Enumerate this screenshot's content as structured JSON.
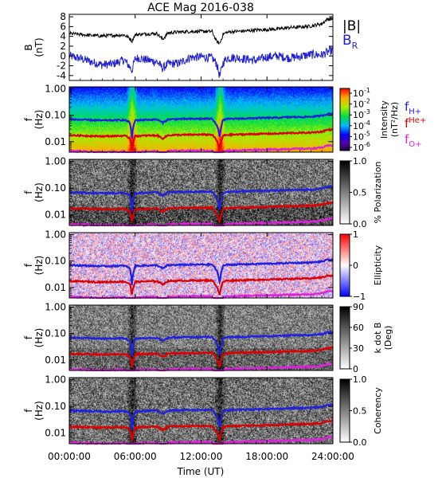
{
  "title": "ACE Mag 2016-038",
  "xaxis": {
    "label": "Time (UT)",
    "range_hours": [
      0,
      24
    ],
    "ticks": [
      {
        "hour": 0,
        "label": "00:00:00"
      },
      {
        "hour": 6,
        "label": "06:00:00"
      },
      {
        "hour": 12,
        "label": "12:00:00"
      },
      {
        "hour": 18,
        "label": "18:00:00"
      },
      {
        "hour": 24,
        "label": "24:00:00"
      }
    ]
  },
  "legend": {
    "B": {
      "label": "|B|",
      "color": "#000000"
    },
    "BR": {
      "label": "B",
      "sub": "R",
      "color": "#1f1fd0"
    },
    "fH": {
      "label": "f",
      "sub": "H+",
      "color": "#2020e0"
    },
    "fHe": {
      "label": "f",
      "sub": "He+",
      "color": "#dd0000"
    },
    "fO": {
      "label": "f",
      "sub": "O+",
      "color": "#dd22dd"
    }
  },
  "panels": [
    {
      "name": "field",
      "ylabel": "B",
      "yunit": "(nT)",
      "ylim": [
        -5,
        8.5
      ],
      "ticks": [
        {
          "v": 8,
          "label": "8"
        },
        {
          "v": 6,
          "label": "6"
        },
        {
          "v": 4,
          "label": "4"
        },
        {
          "v": 2,
          "label": "2"
        },
        {
          "v": 0,
          "label": "0"
        },
        {
          "v": -2,
          "label": "-2"
        },
        {
          "v": -4,
          "label": "-4"
        }
      ]
    },
    {
      "name": "intensity",
      "ylabel": "f",
      "yunit": "(Hz)",
      "cmap": "rainbow",
      "colorbar_title": "Intensity",
      "colorbar_unit": "(nT²/Hz)",
      "colorbar_ticks": [
        {
          "exp": "-1"
        },
        {
          "exp": "-2"
        },
        {
          "exp": "-3"
        },
        {
          "exp": "-4"
        },
        {
          "exp": "-5"
        },
        {
          "exp": "-6"
        }
      ]
    },
    {
      "name": "polarization",
      "ylabel": "f",
      "yunit": "(Hz)",
      "cmap": "gray",
      "colorbar_title": "% Polarization",
      "colorbar_ticks": [
        {
          "f": 1,
          "label": "1.0"
        },
        {
          "f": 0.5,
          "label": "0.5"
        },
        {
          "f": 0,
          "label": "0.0"
        }
      ]
    },
    {
      "name": "ellipticity",
      "ylabel": "f",
      "yunit": "(Hz)",
      "cmap": "bwr",
      "colorbar_title": "Ellipticity",
      "colorbar_ticks": [
        {
          "f": 1,
          "label": "1"
        },
        {
          "f": 0.5,
          "label": "0"
        },
        {
          "f": 0,
          "label": "−1"
        }
      ]
    },
    {
      "name": "kdotb",
      "ylabel": "f",
      "yunit": "(Hz)",
      "cmap": "gray",
      "colorbar_title": "k dot B",
      "colorbar_unit": "(Deg)",
      "colorbar_ticks": [
        {
          "f": 1,
          "label": "90"
        },
        {
          "f": 0.667,
          "label": "60"
        },
        {
          "f": 0.333,
          "label": "30"
        },
        {
          "f": 0,
          "label": "0"
        }
      ]
    },
    {
      "name": "coherency",
      "ylabel": "f",
      "yunit": "(Hz)",
      "cmap": "gray",
      "colorbar_title": "Coherency",
      "colorbar_ticks": [
        {
          "f": 1,
          "label": "1.0"
        },
        {
          "f": 0.5,
          "label": "0.5"
        },
        {
          "f": 0,
          "label": "0.0"
        }
      ]
    }
  ],
  "freq_ticks": [
    {
      "v": 1.0,
      "label": "1.00"
    },
    {
      "v": 0.1,
      "label": "0.10"
    },
    {
      "v": 0.01,
      "label": "0.01"
    }
  ],
  "chart_data": {
    "type": "line",
    "title": "ACE Mag 2016-038",
    "xlabel": "Time (UT)",
    "x_unit": "hours",
    "ylim_field": [
      -5,
      8.5
    ],
    "ylim_freq_hz": [
      0.004,
      1.2
    ],
    "y_scale_freq": "log",
    "x": [
      0,
      1,
      2,
      3,
      4,
      5,
      5.5,
      5.7,
      6,
      6.3,
      7,
      8,
      8.5,
      9,
      10,
      11,
      12,
      13,
      13.4,
      13.7,
      14,
      14.3,
      15,
      16,
      17,
      18,
      19,
      20,
      21,
      22,
      23,
      23.5,
      24
    ],
    "series": [
      {
        "name": "|B|",
        "unit": "nT",
        "values": [
          4.6,
          4.4,
          4.2,
          4.1,
          4.2,
          4.3,
          3.6,
          3.0,
          4.3,
          4.4,
          4.5,
          4.6,
          3.4,
          4.7,
          4.9,
          5.0,
          5.0,
          5.0,
          3.0,
          2.5,
          4.4,
          4.8,
          5.0,
          5.1,
          5.3,
          5.4,
          5.5,
          5.8,
          5.9,
          6.1,
          6.6,
          7.5,
          7.6
        ]
      },
      {
        "name": "BR",
        "unit": "nT",
        "values": [
          0.0,
          -0.5,
          -1.2,
          -1.8,
          -1.6,
          -0.8,
          -2.2,
          -3.0,
          -0.6,
          -0.4,
          -0.8,
          -1.2,
          -2.5,
          -1.6,
          -1.5,
          -0.3,
          -0.2,
          -0.4,
          -1.5,
          -4.2,
          -1.4,
          -0.5,
          -0.3,
          -0.6,
          -0.9,
          -0.2,
          0.0,
          -0.4,
          -0.1,
          0.3,
          0.2,
          0.8,
          1.2
        ]
      },
      {
        "name": "fH+",
        "unit": "Hz",
        "values": [
          0.07,
          0.068,
          0.066,
          0.064,
          0.065,
          0.067,
          0.055,
          0.013,
          0.065,
          0.066,
          0.068,
          0.069,
          0.052,
          0.07,
          0.072,
          0.073,
          0.074,
          0.074,
          0.045,
          0.014,
          0.066,
          0.072,
          0.074,
          0.076,
          0.078,
          0.08,
          0.081,
          0.085,
          0.086,
          0.088,
          0.096,
          0.112,
          0.115
        ]
      },
      {
        "name": "fHe+",
        "unit": "Hz",
        "values": [
          0.0175,
          0.017,
          0.0165,
          0.016,
          0.0163,
          0.0168,
          0.0138,
          0.0052,
          0.0163,
          0.0165,
          0.017,
          0.0173,
          0.013,
          0.0175,
          0.018,
          0.0183,
          0.0185,
          0.0185,
          0.0112,
          0.005,
          0.0165,
          0.018,
          0.0185,
          0.019,
          0.0195,
          0.02,
          0.0203,
          0.0213,
          0.0215,
          0.022,
          0.024,
          0.028,
          0.0288
        ]
      },
      {
        "name": "fO+",
        "unit": "Hz",
        "values": [
          0.0044,
          0.0043,
          0.0041,
          0.004,
          0.0041,
          0.0042,
          0.0035,
          0.0013,
          0.0041,
          0.0041,
          0.0043,
          0.0043,
          0.0033,
          0.0044,
          0.0045,
          0.0046,
          0.0046,
          0.0046,
          0.0028,
          0.0012,
          0.0041,
          0.0045,
          0.0046,
          0.0048,
          0.0049,
          0.005,
          0.0051,
          0.0053,
          0.0054,
          0.0055,
          0.006,
          0.007,
          0.0072
        ]
      }
    ]
  }
}
